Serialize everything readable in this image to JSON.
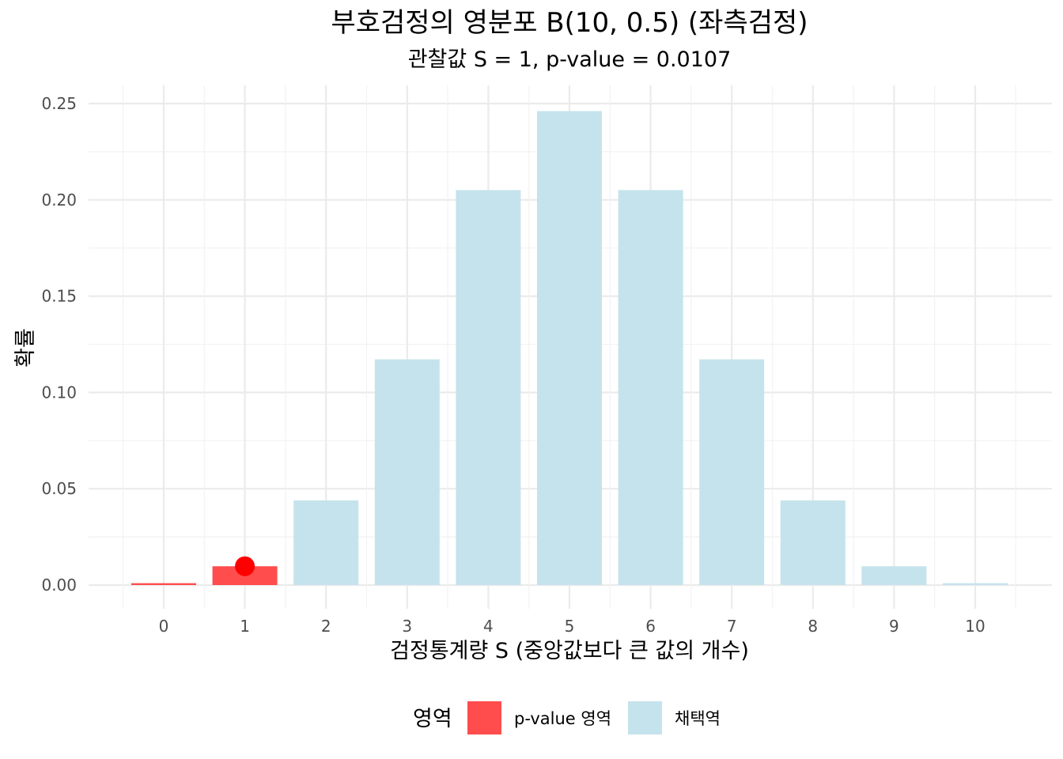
{
  "chart_data": {
    "type": "bar",
    "title": "부호검정의 영분포 B(10, 0.5) (좌측검정)",
    "subtitle": "관찰값 S = 1, p-value = 0.0107",
    "xlabel": "검정통계량 S (중앙값보다 큰 값의 개수)",
    "ylabel": "확률",
    "categories": [
      "0",
      "1",
      "2",
      "3",
      "4",
      "5",
      "6",
      "7",
      "8",
      "9",
      "10"
    ],
    "values": [
      0.000977,
      0.009766,
      0.043945,
      0.117188,
      0.205078,
      0.246094,
      0.205078,
      0.117188,
      0.043945,
      0.009766,
      0.000977
    ],
    "region": [
      "p-value 영역",
      "p-value 영역",
      "채택역",
      "채택역",
      "채택역",
      "채택역",
      "채택역",
      "채택역",
      "채택역",
      "채택역",
      "채택역"
    ],
    "observed": {
      "x": 1,
      "y": 0.009766,
      "color": "#ff0000"
    },
    "ylim": [
      0,
      0.25
    ],
    "yticks": [
      "0.00",
      "0.05",
      "0.10",
      "0.15",
      "0.20",
      "0.25"
    ],
    "grid": true,
    "legend": {
      "title": "영역",
      "position": "bottom",
      "entries": [
        {
          "label": "p-value 영역",
          "color": "#ff4d4d"
        },
        {
          "label": "채택역",
          "color": "#c5e3ec"
        }
      ]
    }
  }
}
